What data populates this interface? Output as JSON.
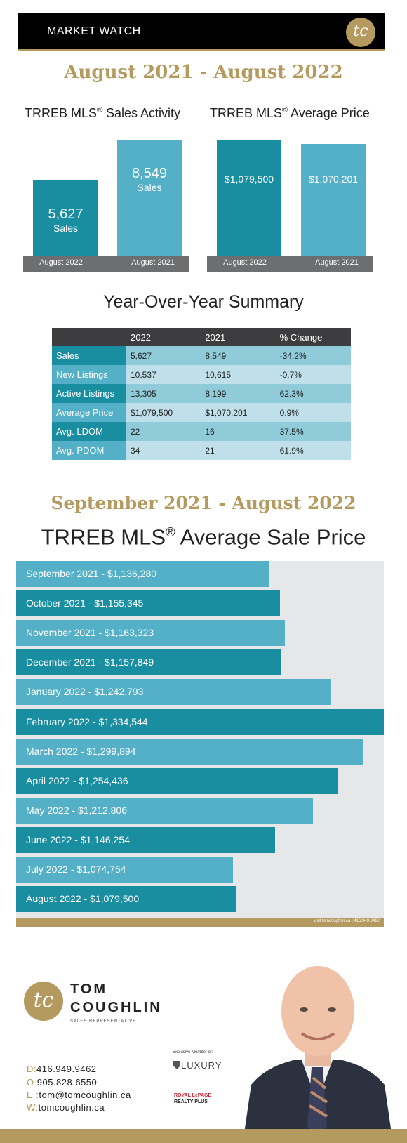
{
  "header": {
    "title": "MARKET WATCH",
    "logo_text": "tc"
  },
  "period1": {
    "title": "August 2021 - August 2022"
  },
  "sales_activity": {
    "title": "TRREB MLS",
    "reg": "®",
    "title_suffix": " Sales Activity",
    "bars": [
      {
        "value": "5,627",
        "unit": "Sales",
        "label": "August 2022"
      },
      {
        "value": "8,549",
        "unit": "Sales",
        "label": "August 2021"
      }
    ]
  },
  "avg_price": {
    "title": "TRREB MLS",
    "reg": "®",
    "title_suffix": " Average Price",
    "bars": [
      {
        "value": "$1,079,500",
        "label": "August 2022"
      },
      {
        "value": "$1,070,201",
        "label": "August 2021"
      }
    ]
  },
  "summary": {
    "title": "Year-Over-Year Summary",
    "columns": [
      "",
      "2022",
      "2021",
      "% Change"
    ],
    "rows": [
      [
        "Sales",
        "5,627",
        "8,549",
        "-34.2%"
      ],
      [
        "New Listings",
        "10,537",
        "10,615",
        "-0.7%"
      ],
      [
        "Active Listings",
        "13,305",
        "8,199",
        "62.3%"
      ],
      [
        "Average Price",
        "$1,079,500",
        "$1,070,201",
        "0.9%"
      ],
      [
        "Avg. LDOM",
        "22",
        "16",
        "37.5%"
      ],
      [
        "Avg. PDOM",
        "34",
        "21",
        "61.9%"
      ]
    ]
  },
  "period2": {
    "title": "September 2021 - August 2022"
  },
  "avg_sale_price": {
    "title": "TRREB MLS",
    "reg": "®",
    "title_suffix": " Average Sale Price",
    "strip_text": "visit tomcoughlin.ca | 416.949.9462"
  },
  "chart_data": [
    {
      "type": "bar",
      "title": "TRREB MLS® Sales Activity",
      "categories": [
        "August 2022",
        "August 2021"
      ],
      "values": [
        5627,
        8549
      ]
    },
    {
      "type": "bar",
      "title": "TRREB MLS® Average Price",
      "categories": [
        "August 2022",
        "August 2021"
      ],
      "values": [
        1079500,
        1070201
      ]
    },
    {
      "type": "table",
      "title": "Year-Over-Year Summary",
      "columns": [
        "",
        "2022",
        "2021",
        "% Change"
      ],
      "rows": [
        [
          "Sales",
          "5,627",
          "8,549",
          "-34.2%"
        ],
        [
          "New Listings",
          "10,537",
          "10,615",
          "-0.7%"
        ],
        [
          "Active Listings",
          "13,305",
          "8,199",
          "62.3%"
        ],
        [
          "Average Price",
          "$1,079,500",
          "$1,070,201",
          "0.9%"
        ],
        [
          "Avg. LDOM",
          "22",
          "16",
          "37.5%"
        ],
        [
          "Avg. PDOM",
          "34",
          "21",
          "61.9%"
        ]
      ]
    },
    {
      "type": "bar",
      "orientation": "horizontal",
      "title": "TRREB MLS® Average Sale Price",
      "categories": [
        "September 2021",
        "October 2021",
        "November 2021",
        "December 2021",
        "January 2022",
        "February 2022",
        "March 2022",
        "April 2022",
        "May 2022",
        "June 2022",
        "July 2022",
        "August 2022"
      ],
      "values": [
        1136280,
        1155345,
        1163323,
        1157849,
        1242793,
        1334544,
        1299894,
        1254436,
        1212806,
        1146254,
        1074754,
        1079500
      ],
      "labels": [
        "September 2021 - $1,136,280",
        "October 2021 - $1,155,345",
        "November 2021 - $1,163,323",
        "December 2021 - $1,157,849",
        "January 2022 - $1,242,793",
        "February 2022 - $1,334,544",
        "March 2022 - $1,299,894",
        "April 2022 - $1,254,436",
        "May 2022 - $1,212,806",
        "June 2022 - $1,146,254",
        "July 2022 - $1,074,754",
        "August 2022 - $1,079,500"
      ],
      "colors": [
        "#54b0c7",
        "#1a8ea1"
      ]
    }
  ],
  "footer": {
    "logo_text": "tc",
    "first_name": "TOM",
    "last_name": "COUGHLIN",
    "role": "SALES REPRESENTATIVE",
    "contacts": [
      {
        "label": "D:",
        "value": "416.949.9462"
      },
      {
        "label": "O:",
        "value": "905.828.6550"
      },
      {
        "label": "E :",
        "value": "tom@tomcoughlin.ca"
      },
      {
        "label": "W:",
        "value": "tomcoughlin.ca"
      }
    ],
    "exclusive": "Exclusive Member of:",
    "luxury": "LUXURY",
    "royal_line1": "ROYAL LePAGE",
    "royal_line2": "REALTY PLUS"
  },
  "colors": {
    "gold": "#b49a5e",
    "teal_dark": "#1a8ea1",
    "teal_light": "#54b0c7",
    "panel_grey": "#e6e7e8",
    "axis_grey": "#6d6e70"
  }
}
